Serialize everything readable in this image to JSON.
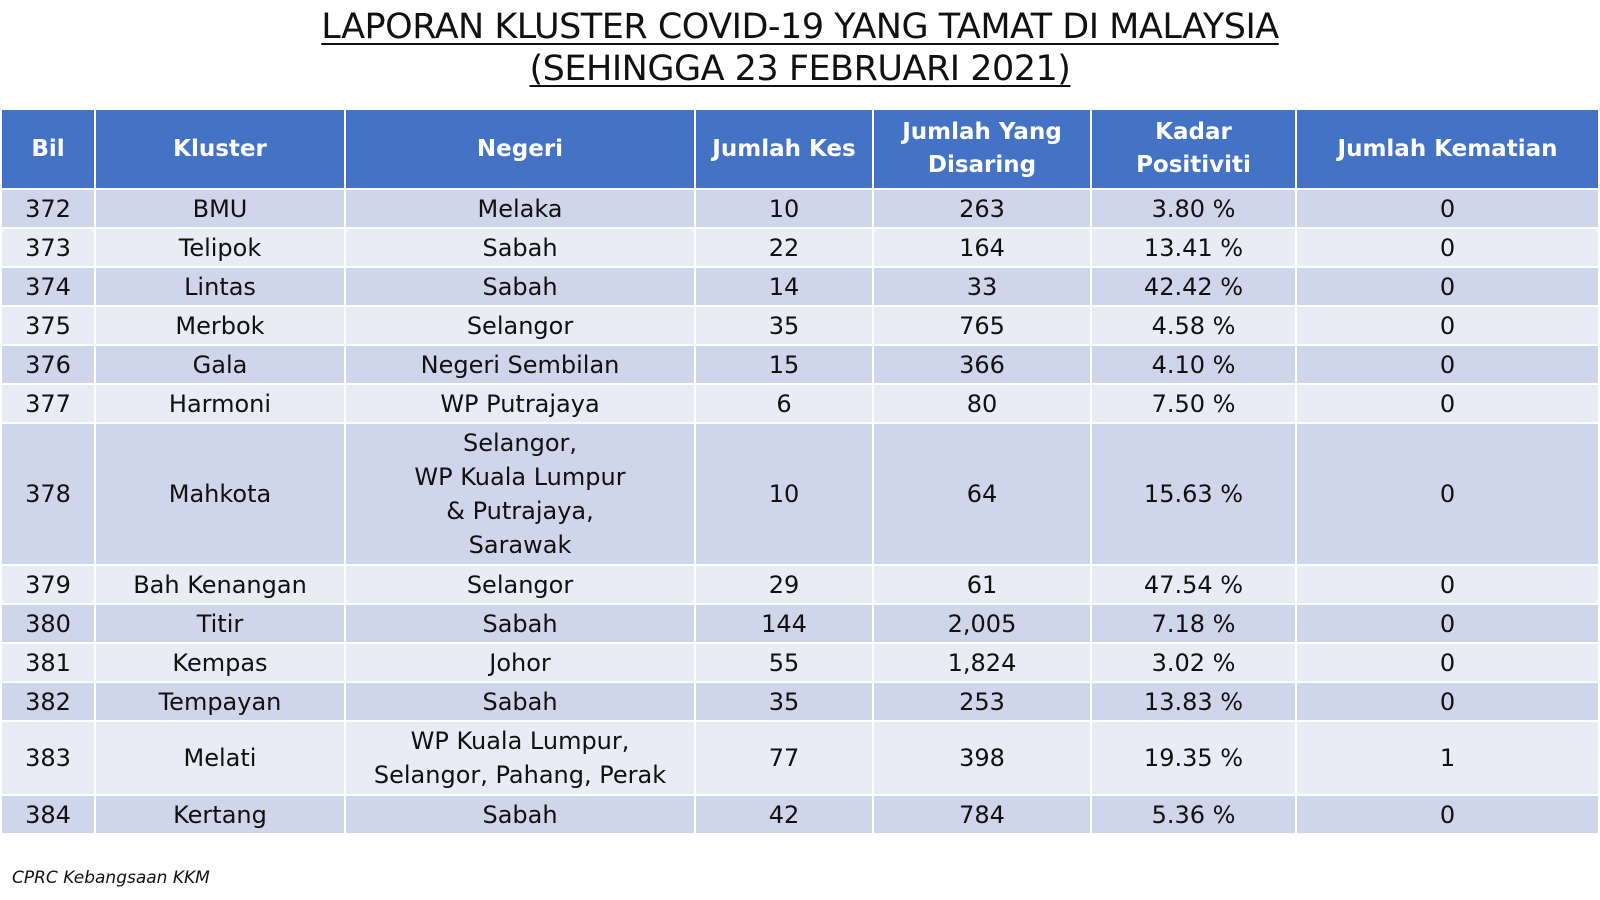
{
  "title": {
    "line1": "LAPORAN KLUSTER COVID-19 YANG TAMAT DI MALAYSIA",
    "line2": "(SEHINGGA 23 FEBRUARI 2021)"
  },
  "headers": {
    "bil": "Bil",
    "kluster": "Kluster",
    "negeri": "Negeri",
    "jumlah_kes": "Jumlah Kes",
    "jumlah_disaring_1": "Jumlah Yang",
    "jumlah_disaring_2": "Disaring",
    "kadar_positiviti": "Kadar Positiviti",
    "jumlah_kematian": "Jumlah Kematian"
  },
  "rows": [
    {
      "bil": "372",
      "kluster": "BMU",
      "negeri": [
        "Melaka"
      ],
      "kes": "10",
      "disaring": "263",
      "positiviti": "3.80 %",
      "kematian": "0"
    },
    {
      "bil": "373",
      "kluster": "Telipok",
      "negeri": [
        "Sabah"
      ],
      "kes": "22",
      "disaring": "164",
      "positiviti": "13.41 %",
      "kematian": "0"
    },
    {
      "bil": "374",
      "kluster": "Lintas",
      "negeri": [
        "Sabah"
      ],
      "kes": "14",
      "disaring": "33",
      "positiviti": "42.42 %",
      "kematian": "0"
    },
    {
      "bil": "375",
      "kluster": "Merbok",
      "negeri": [
        "Selangor"
      ],
      "kes": "35",
      "disaring": "765",
      "positiviti": "4.58 %",
      "kematian": "0"
    },
    {
      "bil": "376",
      "kluster": "Gala",
      "negeri": [
        "Negeri Sembilan"
      ],
      "kes": "15",
      "disaring": "366",
      "positiviti": "4.10 %",
      "kematian": "0"
    },
    {
      "bil": "377",
      "kluster": "Harmoni",
      "negeri": [
        "WP Putrajaya"
      ],
      "kes": "6",
      "disaring": "80",
      "positiviti": "7.50 %",
      "kematian": "0"
    },
    {
      "bil": "378",
      "kluster": "Mahkota",
      "negeri": [
        "Selangor,",
        "WP Kuala Lumpur",
        "& Putrajaya,",
        "Sarawak"
      ],
      "kes": "10",
      "disaring": "64",
      "positiviti": "15.63 %",
      "kematian": "0"
    },
    {
      "bil": "379",
      "kluster": "Bah Kenangan",
      "negeri": [
        "Selangor"
      ],
      "kes": "29",
      "disaring": "61",
      "positiviti": "47.54 %",
      "kematian": "0"
    },
    {
      "bil": "380",
      "kluster": "Titir",
      "negeri": [
        "Sabah"
      ],
      "kes": "144",
      "disaring": "2,005",
      "positiviti": "7.18 %",
      "kematian": "0"
    },
    {
      "bil": "381",
      "kluster": "Kempas",
      "negeri": [
        "Johor"
      ],
      "kes": "55",
      "disaring": "1,824",
      "positiviti": "3.02 %",
      "kematian": "0"
    },
    {
      "bil": "382",
      "kluster": "Tempayan",
      "negeri": [
        "Sabah"
      ],
      "kes": "35",
      "disaring": "253",
      "positiviti": "13.83 %",
      "kematian": "0"
    },
    {
      "bil": "383",
      "kluster": "Melati",
      "negeri": [
        "WP Kuala Lumpur,",
        "Selangor, Pahang, Perak"
      ],
      "kes": "77",
      "disaring": "398",
      "positiviti": "19.35 %",
      "kematian": "1"
    },
    {
      "bil": "384",
      "kluster": "Kertang",
      "negeri": [
        "Sabah"
      ],
      "kes": "42",
      "disaring": "784",
      "positiviti": "5.36 %",
      "kematian": "0"
    }
  ],
  "footer": "CPRC Kebangsaan KKM",
  "colors": {
    "header_bg": "#4472c4",
    "row_odd": "#cfd5ea",
    "row_even": "#e9ebf5"
  }
}
